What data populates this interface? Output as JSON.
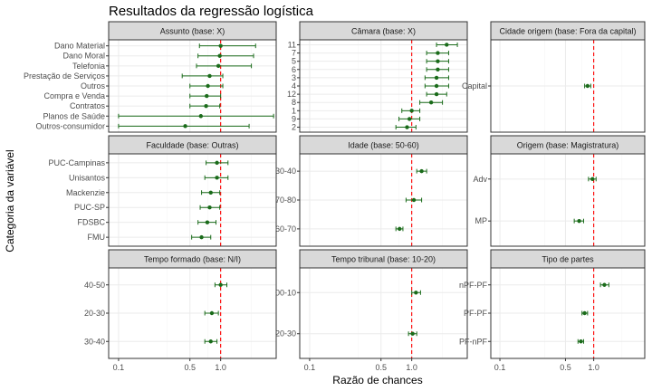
{
  "title": "Resultados da regressão logística",
  "xlabel": "Razão de chances",
  "ylabel": "Categoria da variável",
  "colors": {
    "point": "#1a6b1a",
    "errorbar": "#1a6b1a",
    "refline": "#ff0000",
    "strip_bg": "#d9d9d9",
    "panel_border": "#333333",
    "grid_major": "#ebebeb",
    "grid_minor": "#f5f5f5"
  },
  "chart_data": {
    "type": "scatter",
    "x_scale": "log10",
    "xlim": [
      0.08,
      3.5
    ],
    "x_ticks": [
      "0.1",
      "0.5",
      "1.0"
    ],
    "x_tick_values": [
      0.1,
      0.5,
      1.0
    ],
    "reference_line": 1.0,
    "facets": [
      {
        "strip": "Assunto (base: X)",
        "categories": [
          "Dano Material",
          "Dano Moral",
          "Telefonia",
          "Prestação de Serviços",
          "Outros",
          "Compra e Venda",
          "Contratos",
          "Planos de Saúde",
          "Outros-consumidor"
        ],
        "estimate": [
          1.0,
          0.98,
          0.95,
          0.78,
          0.75,
          0.73,
          0.72,
          0.64,
          0.45
        ],
        "low": [
          0.62,
          0.6,
          0.58,
          0.42,
          0.5,
          0.5,
          0.5,
          0.1,
          0.1
        ],
        "high": [
          2.2,
          2.1,
          2.0,
          1.05,
          1.05,
          1.0,
          0.98,
          3.3,
          1.9
        ]
      },
      {
        "strip": "Câmara (base: X)",
        "categories": [
          "11",
          "7",
          "5",
          "6",
          "3",
          "4",
          "12",
          "8",
          "1",
          "9",
          "2"
        ],
        "estimate": [
          2.2,
          1.8,
          1.8,
          1.8,
          1.75,
          1.75,
          1.75,
          1.55,
          1.0,
          0.95,
          0.9
        ],
        "low": [
          1.75,
          1.4,
          1.4,
          1.4,
          1.35,
          1.35,
          1.4,
          1.2,
          0.8,
          0.75,
          0.7
        ],
        "high": [
          2.8,
          2.3,
          2.3,
          2.3,
          2.3,
          2.3,
          2.2,
          2.0,
          1.2,
          1.2,
          1.1
        ]
      },
      {
        "strip": "Cidade origem (base: Fora da capital)",
        "categories": [
          "Capital"
        ],
        "estimate": [
          0.86
        ],
        "low": [
          0.8
        ],
        "high": [
          0.93
        ]
      },
      {
        "strip": "Faculdade (base: Outras)",
        "categories": [
          "PUC-Campinas",
          "Unisantos",
          "Mackenzie",
          "PUC-SP",
          "FDSBC",
          "FMU"
        ],
        "estimate": [
          0.92,
          0.92,
          0.8,
          0.78,
          0.74,
          0.65
        ],
        "low": [
          0.72,
          0.7,
          0.65,
          0.63,
          0.6,
          0.52
        ],
        "high": [
          1.18,
          1.18,
          0.98,
          0.98,
          0.9,
          0.8
        ]
      },
      {
        "strip": "Idade (base: 50-60)",
        "categories": [
          "30-40",
          "70-80",
          "60-70"
        ],
        "estimate": [
          1.25,
          1.05,
          0.76
        ],
        "low": [
          1.12,
          0.88,
          0.7
        ],
        "high": [
          1.4,
          1.25,
          0.82
        ]
      },
      {
        "strip": "Origem (base: Magistratura)",
        "categories": [
          "Adv",
          "MP"
        ],
        "estimate": [
          0.97,
          0.7
        ],
        "low": [
          0.88,
          0.62
        ],
        "high": [
          1.06,
          0.78
        ]
      },
      {
        "strip": "Tempo formado (base: N/I)",
        "categories": [
          "40-50",
          "20-30",
          "30-40"
        ],
        "estimate": [
          1.0,
          0.82,
          0.8
        ],
        "low": [
          0.88,
          0.7,
          0.7
        ],
        "high": [
          1.15,
          0.95,
          0.92
        ]
      },
      {
        "strip": "Tempo tribunal (base: 10-20)",
        "categories": [
          "00-10",
          "20-30"
        ],
        "estimate": [
          1.1,
          1.02
        ],
        "low": [
          1.0,
          0.93
        ],
        "high": [
          1.22,
          1.12
        ]
      },
      {
        "strip": "Tipo de partes",
        "categories": [
          "nPF-PF",
          "PF-PF",
          "PF-nPF"
        ],
        "estimate": [
          1.3,
          0.8,
          0.73
        ],
        "low": [
          1.18,
          0.75,
          0.68
        ],
        "high": [
          1.45,
          0.86,
          0.78
        ]
      }
    ]
  }
}
